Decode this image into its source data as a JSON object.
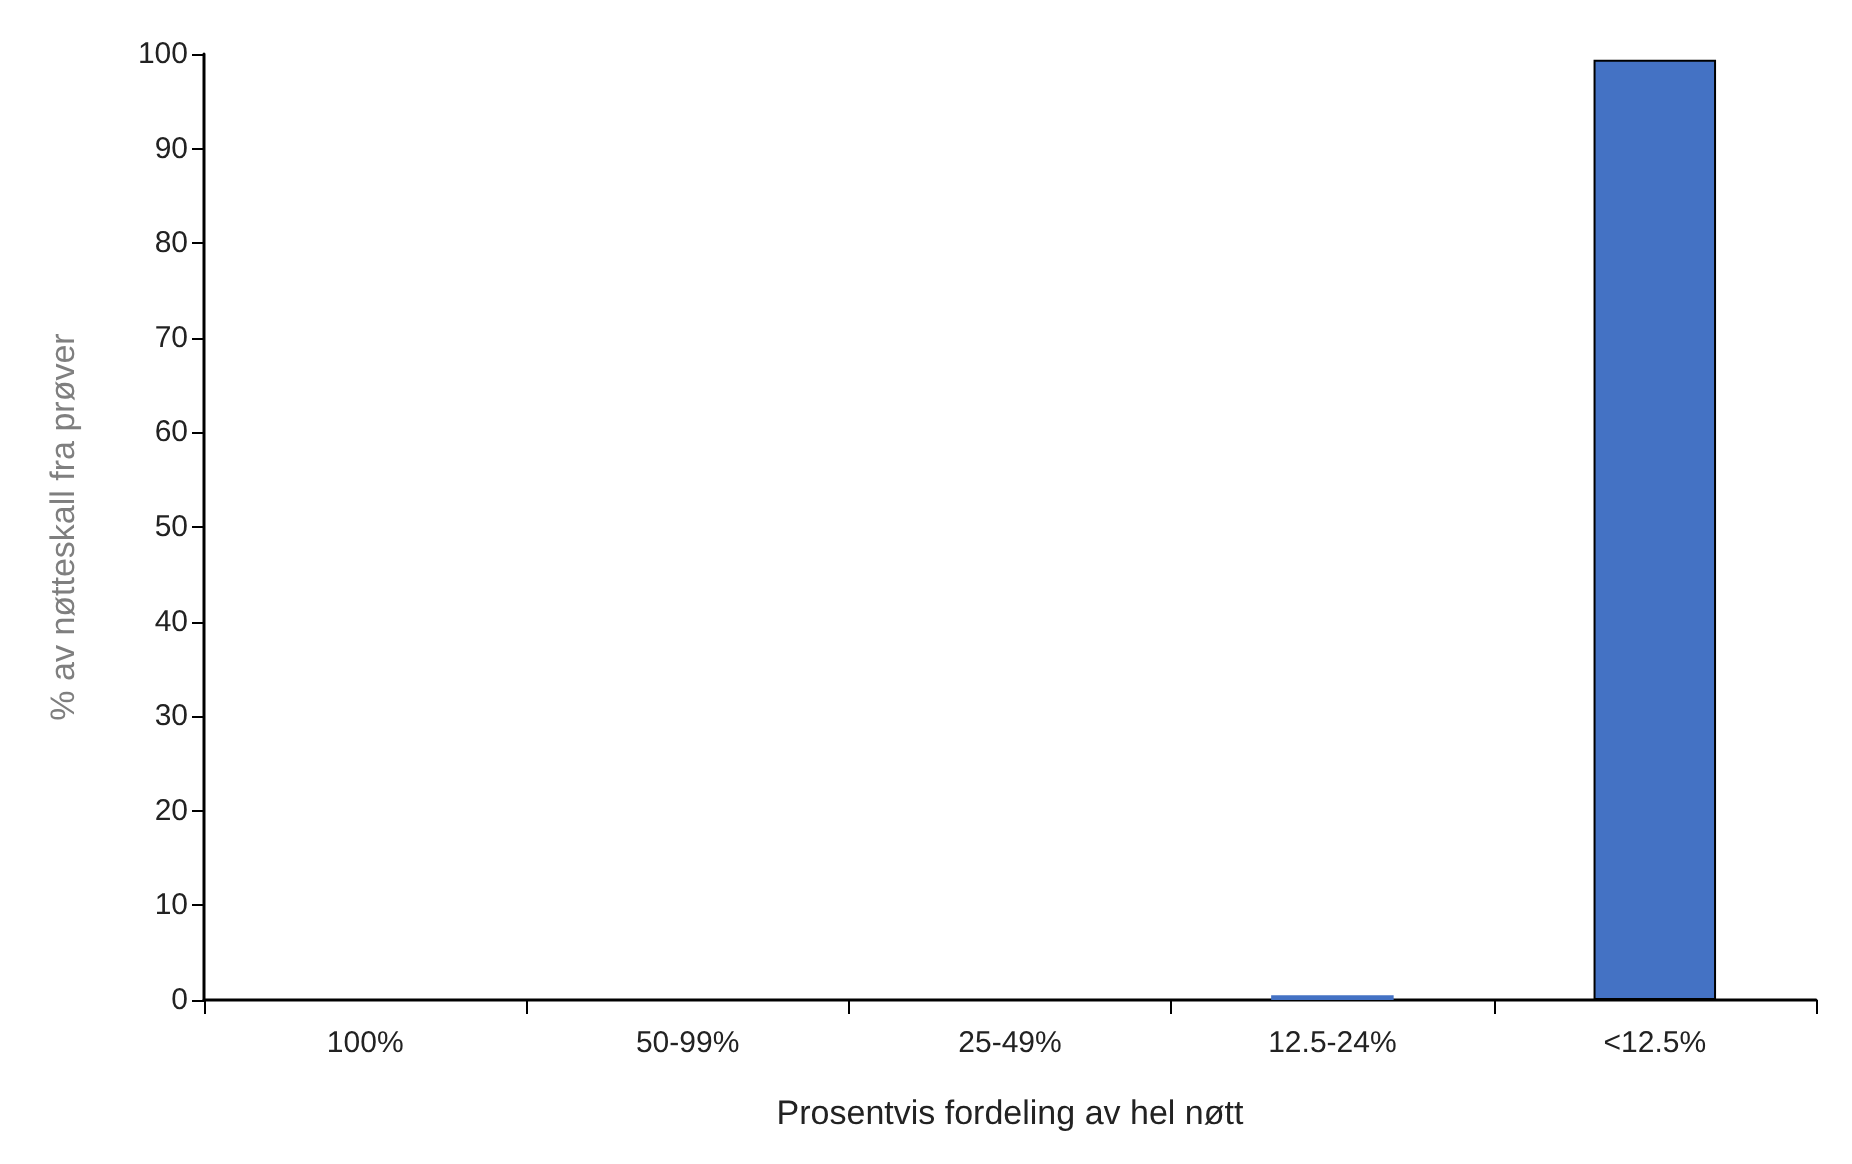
{
  "chart_data": {
    "type": "bar",
    "xlabel": "Prosentvis fordeling av hel nøtt",
    "ylabel": "% av nøtteskall fra prøver",
    "categories": [
      "100%",
      "50-99%",
      "25-49%",
      "12.5-24%",
      "<12.5%"
    ],
    "values": [
      0,
      0,
      0,
      0.5,
      99.4
    ],
    "color": "#4472c4",
    "ylim": [
      0,
      100
    ],
    "yticks": [
      0,
      10,
      20,
      30,
      40,
      50,
      60,
      70,
      80,
      90,
      100
    ],
    "grid": false
  }
}
